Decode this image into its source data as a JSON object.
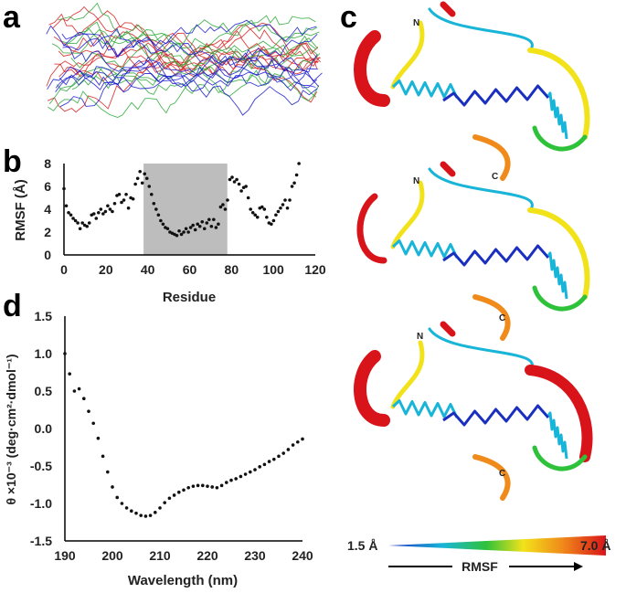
{
  "panels": {
    "a": "a",
    "b": "b",
    "c": "c",
    "d": "d"
  },
  "chart_data": [
    {
      "panel": "b",
      "type": "scatter",
      "xlabel": "Residue",
      "ylabel": "RMSF (Å)",
      "xlim": [
        0,
        120
      ],
      "ylim": [
        0,
        8
      ],
      "xticks": [
        "0",
        "20",
        "40",
        "60",
        "80",
        "100",
        "120"
      ],
      "yticks": [
        "0",
        "2",
        "4",
        "6",
        "8"
      ],
      "shaded_region": [
        38,
        78
      ],
      "x_start": 0,
      "x_step": 1.1,
      "values": [
        5.8,
        4.3,
        3.7,
        3.5,
        3.2,
        3.0,
        2.8,
        2.3,
        2.8,
        2.6,
        2.5,
        2.8,
        3.5,
        3.6,
        3.2,
        3.7,
        4.0,
        3.6,
        3.8,
        4.3,
        4.0,
        3.8,
        4.5,
        5.2,
        5.3,
        4.6,
        4.8,
        5.3,
        4.1,
        5.0,
        4.9,
        6.2,
        6.7,
        7.3,
        6.3,
        7.1,
        6.7,
        6.0,
        5.3,
        4.5,
        4.0,
        3.5,
        3.0,
        2.7,
        2.4,
        2.3,
        2.0,
        1.9,
        1.8,
        1.7,
        2.1,
        1.8,
        2.0,
        2.3,
        2.0,
        2.4,
        2.6,
        2.2,
        2.7,
        2.5,
        2.9,
        2.3,
        2.8,
        3.1,
        2.5,
        3.1,
        2.4,
        2.7,
        4.2,
        4.4,
        4.0,
        4.8,
        6.6,
        6.8,
        6.4,
        6.6,
        6.2,
        5.6,
        5.9,
        6.0,
        5.0,
        4.0,
        3.7,
        3.5,
        3.3,
        4.1,
        4.2,
        4.0,
        3.3,
        2.8,
        2.7,
        3.0,
        3.5,
        3.8,
        4.1,
        4.4,
        4.8,
        4.1,
        4.8,
        6.0,
        6.3,
        7.0,
        8.0
      ]
    },
    {
      "panel": "d",
      "type": "scatter",
      "xlabel": "Wavelength (nm)",
      "ylabel": "θ ×10⁻³ (deg·cm²·dmol⁻¹)",
      "xlim": [
        190,
        240
      ],
      "ylim": [
        -1.5,
        1.5
      ],
      "xticks": [
        "190",
        "200",
        "210",
        "220",
        "230",
        "240"
      ],
      "yticks": [
        "1.5",
        "1.0",
        "0.5",
        "0.0",
        "-0.5",
        "-1.0",
        "-1.5"
      ],
      "x_start": 190,
      "x_step": 1,
      "values": [
        1.0,
        0.73,
        0.5,
        0.53,
        0.4,
        0.23,
        0.07,
        -0.13,
        -0.37,
        -0.58,
        -0.78,
        -0.92,
        -1.0,
        -1.06,
        -1.1,
        -1.13,
        -1.16,
        -1.17,
        -1.16,
        -1.12,
        -1.06,
        -0.99,
        -0.93,
        -0.89,
        -0.85,
        -0.82,
        -0.79,
        -0.77,
        -0.76,
        -0.76,
        -0.77,
        -0.78,
        -0.79,
        -0.76,
        -0.72,
        -0.69,
        -0.67,
        -0.64,
        -0.61,
        -0.58,
        -0.55,
        -0.51,
        -0.48,
        -0.44,
        -0.41,
        -0.37,
        -0.33,
        -0.28,
        -0.22,
        -0.18,
        -0.14
      ]
    }
  ],
  "structures": {
    "n_label": "N",
    "c_label": "C"
  },
  "colorbar": {
    "min_label": "1.5 Å",
    "max_label": "7.0 Å",
    "title": "RMSF",
    "colors": [
      "#1a2fbf",
      "#19b5d8",
      "#2ec23a",
      "#f2e21a",
      "#f08a1a",
      "#d8141a"
    ]
  },
  "ensemble_colors": [
    "#d42020",
    "#2aa836",
    "#1a1ad0"
  ]
}
